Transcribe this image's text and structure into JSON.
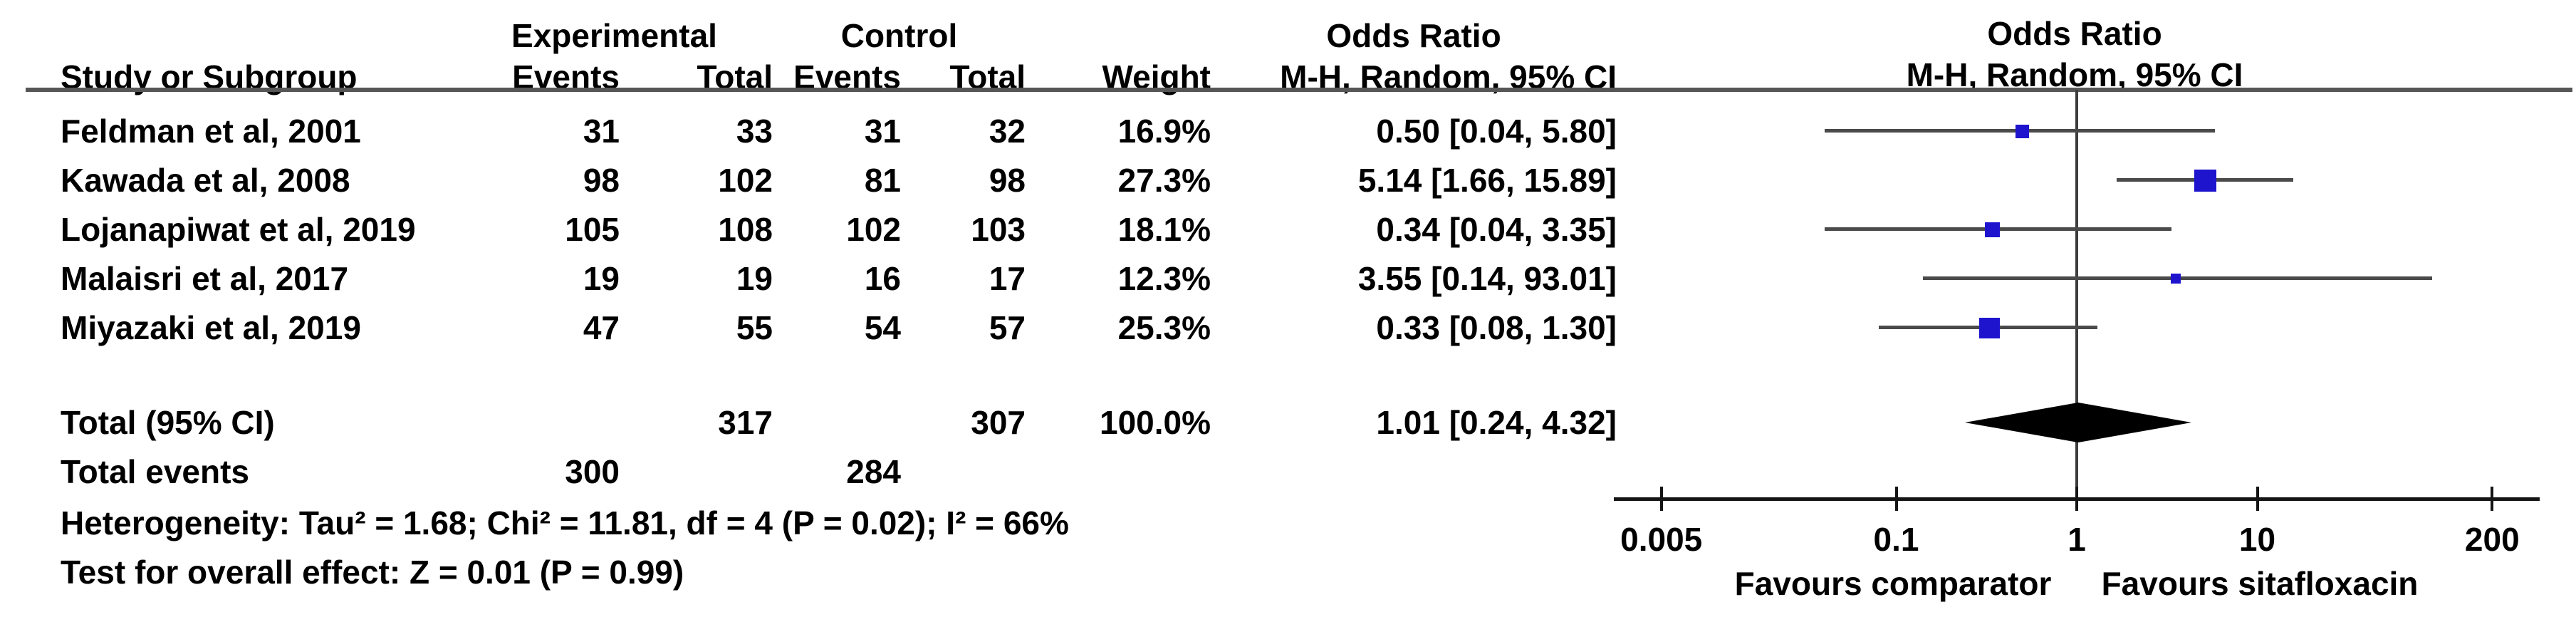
{
  "table": {
    "group_headers": {
      "experimental": "Experimental",
      "control": "Control",
      "odds_ratio": "Odds Ratio",
      "odds_ratio_plot": "Odds Ratio"
    },
    "col_headers": {
      "study": "Study or Subgroup",
      "events_exp": "Events",
      "total_exp": "Total",
      "events_ctrl": "Events",
      "total_ctrl": "Total",
      "weight": "Weight",
      "mh_ci": "M-H, Random, 95% CI",
      "mh_ci_plot": "M-H, Random, 95% CI"
    },
    "rows": [
      {
        "study": "Feldman et al, 2001",
        "exp_events": "31",
        "exp_total": "33",
        "ctrl_events": "31",
        "ctrl_total": "32",
        "weight": "16.9%",
        "or_ci": "0.50 [0.04, 5.80]"
      },
      {
        "study": "Kawada et al, 2008",
        "exp_events": "98",
        "exp_total": "102",
        "ctrl_events": "81",
        "ctrl_total": "98",
        "weight": "27.3%",
        "or_ci": "5.14 [1.66, 15.89]"
      },
      {
        "study": "Lojanapiwat et al, 2019",
        "exp_events": "105",
        "exp_total": "108",
        "ctrl_events": "102",
        "ctrl_total": "103",
        "weight": "18.1%",
        "or_ci": "0.34 [0.04, 3.35]"
      },
      {
        "study": "Malaisri et al, 2017",
        "exp_events": "19",
        "exp_total": "19",
        "ctrl_events": "16",
        "ctrl_total": "17",
        "weight": "12.3%",
        "or_ci": "3.55 [0.14, 93.01]"
      },
      {
        "study": "Miyazaki et al, 2019",
        "exp_events": "47",
        "exp_total": "55",
        "ctrl_events": "54",
        "ctrl_total": "57",
        "weight": "25.3%",
        "or_ci": "0.33 [0.08, 1.30]"
      }
    ],
    "total_row": {
      "label": "Total (95% CI)",
      "exp_total": "317",
      "ctrl_total": "307",
      "weight": "100.0%",
      "or_ci": "1.01 [0.24, 4.32]"
    },
    "total_events": {
      "label": "Total events",
      "exp": "300",
      "ctrl": "284"
    },
    "heterogeneity": "Heterogeneity: Tau² = 1.68; Chi² = 11.81, df = 4 (P = 0.02); I² = 66%",
    "overall_effect": "Test for overall effect: Z = 0.01 (P = 0.99)"
  },
  "chart_data": {
    "type": "forest",
    "x_scale": "log10",
    "xlim": [
      0.005,
      200
    ],
    "null_line": 1,
    "axis_ticks": [
      0.005,
      0.1,
      1,
      10,
      200
    ],
    "axis_tick_labels": [
      "0.005",
      "0.1",
      "1",
      "10",
      "200"
    ],
    "studies": [
      {
        "name": "Feldman et al, 2001",
        "or": 0.5,
        "ci_low": 0.04,
        "ci_high": 5.8,
        "weight_pct": 16.9
      },
      {
        "name": "Kawada et al, 2008",
        "or": 5.14,
        "ci_low": 1.66,
        "ci_high": 15.89,
        "weight_pct": 27.3
      },
      {
        "name": "Lojanapiwat et al, 2019",
        "or": 0.34,
        "ci_low": 0.04,
        "ci_high": 3.35,
        "weight_pct": 18.1
      },
      {
        "name": "Malaisri et al, 2017",
        "or": 3.55,
        "ci_low": 0.14,
        "ci_high": 93.01,
        "weight_pct": 12.3
      },
      {
        "name": "Miyazaki et al, 2019",
        "or": 0.33,
        "ci_low": 0.08,
        "ci_high": 1.3,
        "weight_pct": 25.3
      }
    ],
    "total": {
      "or": 1.01,
      "ci_low": 0.24,
      "ci_high": 4.32,
      "weight_pct": 100.0
    },
    "favours_left": "Favours comparator",
    "favours_right": "Favours sitafloxacin",
    "marker_color": "#1E14CE",
    "diamond_color": "#000000",
    "ci_line_color": "#4a4a4a",
    "axis_color": "#151515"
  }
}
